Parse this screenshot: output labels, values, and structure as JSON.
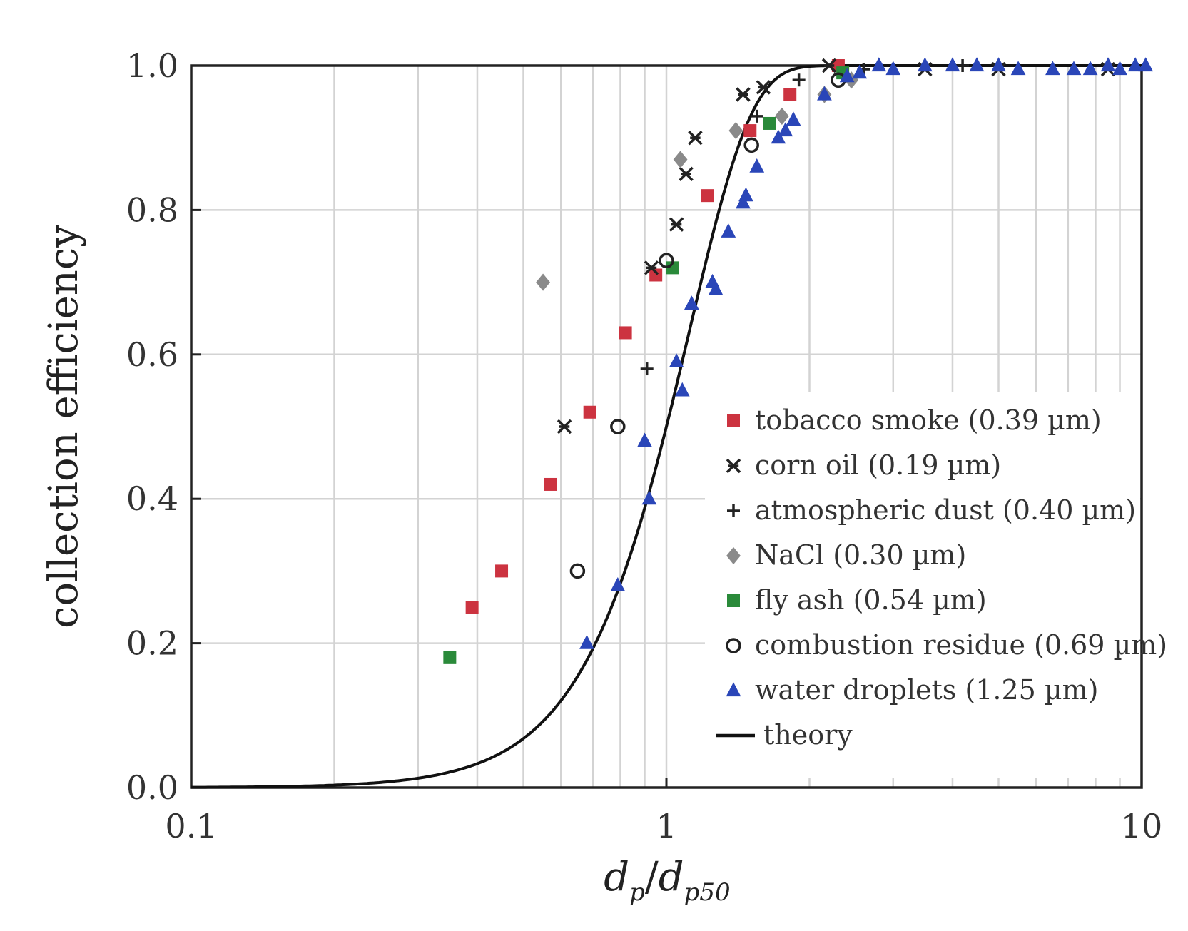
{
  "chart_data": {
    "type": "scatter",
    "title": "",
    "xlabel": "d_p/d_p50",
    "xlabel_parts": {
      "d1": "d",
      "sub1": "p",
      "slash": "/",
      "d2": "d",
      "sub2": "p50"
    },
    "ylabel": "collection efficiency",
    "xscale": "log",
    "xlim": [
      0.1,
      10
    ],
    "ylim": [
      0,
      1
    ],
    "x_tick_values": [
      0.1,
      1,
      10
    ],
    "x_tick_labels": [
      "0.1",
      "1",
      "10"
    ],
    "y_tick_values": [
      0,
      0.2,
      0.4,
      0.6,
      0.8,
      1.0
    ],
    "y_tick_labels": [
      "0.0",
      "0.2",
      "0.4",
      "0.6",
      "0.8",
      "1.0"
    ],
    "grid": true,
    "legend_position": "bottom-right",
    "series": [
      {
        "name": "tobacco smoke (0.39 µm)",
        "marker": "square",
        "color": "#cc3340",
        "points": [
          [
            0.39,
            0.25
          ],
          [
            0.45,
            0.3
          ],
          [
            0.57,
            0.42
          ],
          [
            0.69,
            0.52
          ],
          [
            0.82,
            0.63
          ],
          [
            0.95,
            0.71
          ],
          [
            1.22,
            0.82
          ],
          [
            1.5,
            0.91
          ],
          [
            1.82,
            0.96
          ],
          [
            2.3,
            1.0
          ]
        ]
      },
      {
        "name": "corn oil (0.19 µm)",
        "marker": "x",
        "color": "#222222",
        "points": [
          [
            0.61,
            0.5
          ],
          [
            0.93,
            0.72
          ],
          [
            1.05,
            0.78
          ],
          [
            1.1,
            0.85
          ],
          [
            1.15,
            0.9
          ],
          [
            1.45,
            0.96
          ],
          [
            1.6,
            0.97
          ],
          [
            2.2,
            1.0
          ],
          [
            3.5,
            0.995
          ],
          [
            5.0,
            0.995
          ],
          [
            8.5,
            0.995
          ]
        ]
      },
      {
        "name": "atmospheric dust (0.40 µm)",
        "marker": "plus",
        "color": "#222222",
        "points": [
          [
            0.91,
            0.58
          ],
          [
            1.55,
            0.93
          ],
          [
            1.9,
            0.98
          ],
          [
            2.6,
            0.995
          ],
          [
            4.2,
            1.0
          ]
        ]
      },
      {
        "name": "NaCl (0.30 µm)",
        "marker": "diamond",
        "color": "#8a8a8a",
        "points": [
          [
            0.55,
            0.7
          ],
          [
            1.07,
            0.87
          ],
          [
            1.4,
            0.91
          ],
          [
            1.75,
            0.93
          ],
          [
            2.15,
            0.96
          ],
          [
            2.45,
            0.98
          ]
        ]
      },
      {
        "name": "fly ash (0.54 µm)",
        "marker": "square",
        "color": "#2a8a3a",
        "points": [
          [
            0.35,
            0.18
          ],
          [
            1.03,
            0.72
          ],
          [
            1.65,
            0.92
          ],
          [
            2.35,
            0.99
          ]
        ]
      },
      {
        "name": "combustion residue (0.69 µm)",
        "marker": "circle",
        "color": "#222222",
        "points": [
          [
            0.65,
            0.3
          ],
          [
            0.79,
            0.5
          ],
          [
            1.0,
            0.73
          ],
          [
            1.51,
            0.89
          ],
          [
            2.3,
            0.98
          ]
        ]
      },
      {
        "name": "water droplets (1.25 µm)",
        "marker": "triangle",
        "color": "#2a46b8",
        "points": [
          [
            0.68,
            0.2
          ],
          [
            0.79,
            0.28
          ],
          [
            0.9,
            0.48
          ],
          [
            0.92,
            0.4
          ],
          [
            1.05,
            0.59
          ],
          [
            1.08,
            0.55
          ],
          [
            1.13,
            0.67
          ],
          [
            1.25,
            0.7
          ],
          [
            1.27,
            0.69
          ],
          [
            1.35,
            0.77
          ],
          [
            1.45,
            0.81
          ],
          [
            1.47,
            0.82
          ],
          [
            1.55,
            0.86
          ],
          [
            1.72,
            0.9
          ],
          [
            1.78,
            0.91
          ],
          [
            1.85,
            0.925
          ],
          [
            2.15,
            0.96
          ],
          [
            2.4,
            0.985
          ],
          [
            2.55,
            0.99
          ],
          [
            2.8,
            1.0
          ],
          [
            3.0,
            0.995
          ],
          [
            3.5,
            1.0
          ],
          [
            4.0,
            1.0
          ],
          [
            4.5,
            1.0
          ],
          [
            5.0,
            1.0
          ],
          [
            5.5,
            0.995
          ],
          [
            6.5,
            0.995
          ],
          [
            7.2,
            0.995
          ],
          [
            7.8,
            0.995
          ],
          [
            8.5,
            1.0
          ],
          [
            9.0,
            0.995
          ],
          [
            9.7,
            1.0
          ],
          [
            10.2,
            1.0
          ]
        ]
      }
    ],
    "theory": {
      "name": "theory",
      "color": "#111111"
    }
  }
}
